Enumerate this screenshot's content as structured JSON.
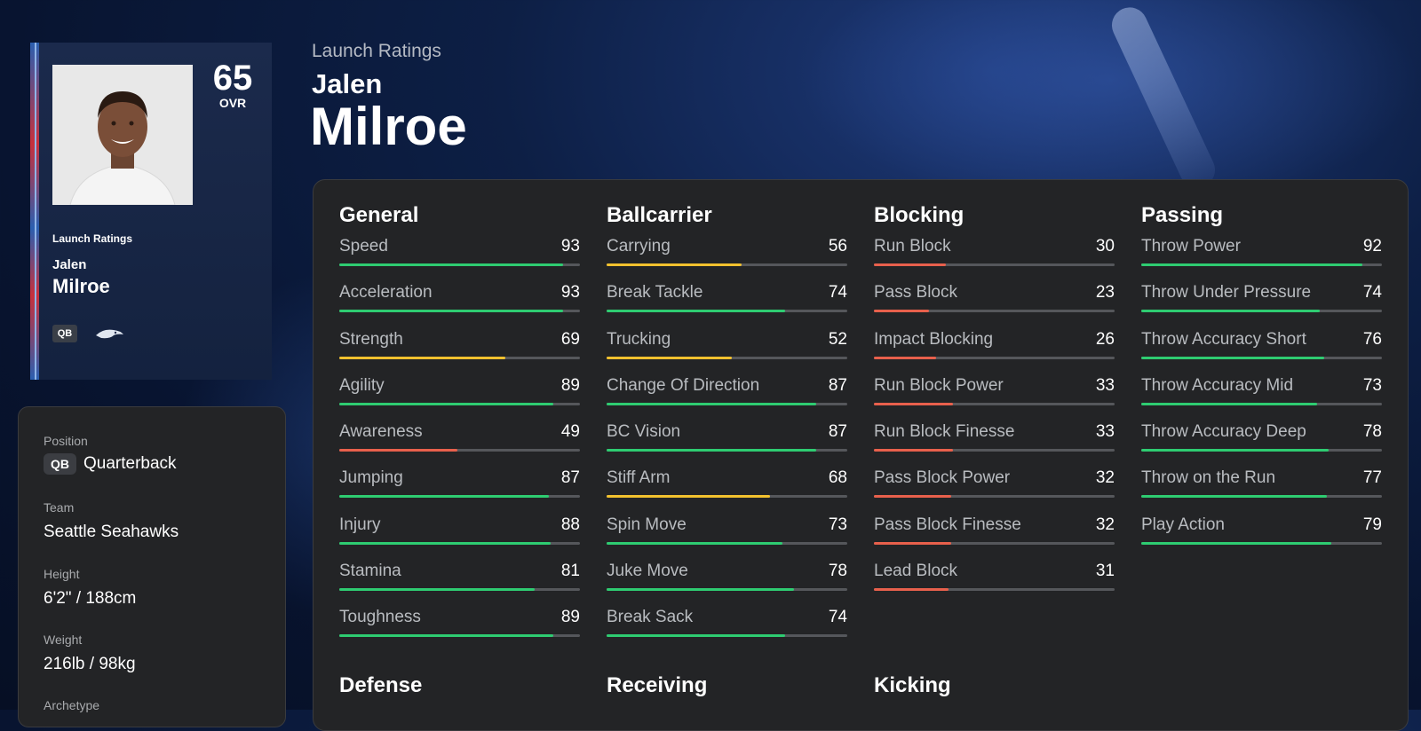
{
  "header": {
    "subtitle": "Launch Ratings",
    "first_name": "Jalen",
    "last_name": "Milroe"
  },
  "card": {
    "ovr": "65",
    "ovr_label": "OVR",
    "ratings_label": "Launch Ratings",
    "first_name": "Jalen",
    "last_name": "Milroe",
    "position_badge": "QB",
    "team_logo": "seahawks-logo"
  },
  "info": {
    "position_label": "Position",
    "position_badge": "QB",
    "position_value": "Quarterback",
    "team_label": "Team",
    "team_value": "Seattle Seahawks",
    "height_label": "Height",
    "height_value": "6'2\" / 188cm",
    "weight_label": "Weight",
    "weight_value": "216lb / 98kg",
    "archetype_label": "Archetype"
  },
  "colors": {
    "high": "#2ecc71",
    "mid": "#f2c12e",
    "low": "#e8604c"
  },
  "categories": [
    {
      "title": "General",
      "stats": [
        {
          "name": "Speed",
          "value": 93
        },
        {
          "name": "Acceleration",
          "value": 93
        },
        {
          "name": "Strength",
          "value": 69
        },
        {
          "name": "Agility",
          "value": 89
        },
        {
          "name": "Awareness",
          "value": 49
        },
        {
          "name": "Jumping",
          "value": 87
        },
        {
          "name": "Injury",
          "value": 88
        },
        {
          "name": "Stamina",
          "value": 81
        },
        {
          "name": "Toughness",
          "value": 89
        }
      ]
    },
    {
      "title": "Ballcarrier",
      "stats": [
        {
          "name": "Carrying",
          "value": 56
        },
        {
          "name": "Break Tackle",
          "value": 74
        },
        {
          "name": "Trucking",
          "value": 52
        },
        {
          "name": "Change Of Direction",
          "value": 87
        },
        {
          "name": "BC Vision",
          "value": 87
        },
        {
          "name": "Stiff Arm",
          "value": 68
        },
        {
          "name": "Spin Move",
          "value": 73
        },
        {
          "name": "Juke Move",
          "value": 78
        },
        {
          "name": "Break Sack",
          "value": 74
        }
      ]
    },
    {
      "title": "Blocking",
      "stats": [
        {
          "name": "Run Block",
          "value": 30
        },
        {
          "name": "Pass Block",
          "value": 23
        },
        {
          "name": "Impact Blocking",
          "value": 26
        },
        {
          "name": "Run Block Power",
          "value": 33
        },
        {
          "name": "Run Block Finesse",
          "value": 33
        },
        {
          "name": "Pass Block Power",
          "value": 32
        },
        {
          "name": "Pass Block Finesse",
          "value": 32
        },
        {
          "name": "Lead Block",
          "value": 31
        }
      ]
    },
    {
      "title": "Passing",
      "stats": [
        {
          "name": "Throw Power",
          "value": 92
        },
        {
          "name": "Throw Under Pressure",
          "value": 74
        },
        {
          "name": "Throw Accuracy Short",
          "value": 76
        },
        {
          "name": "Throw Accuracy Mid",
          "value": 73
        },
        {
          "name": "Throw Accuracy Deep",
          "value": 78
        },
        {
          "name": "Throw on the Run",
          "value": 77
        },
        {
          "name": "Play Action",
          "value": 79
        }
      ]
    }
  ],
  "more_categories": [
    "Defense",
    "Receiving",
    "Kicking"
  ]
}
